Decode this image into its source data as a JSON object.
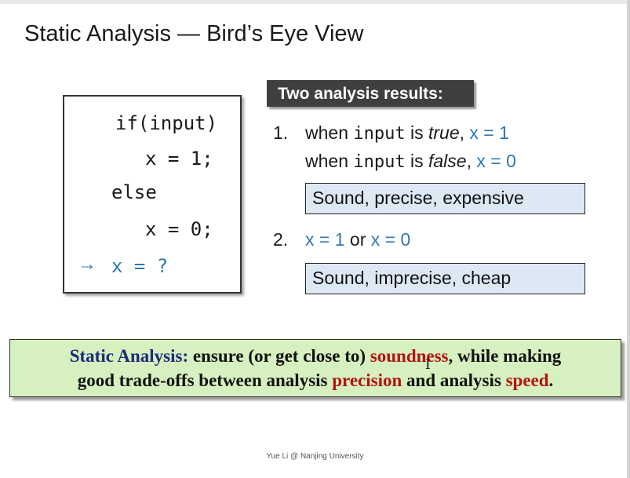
{
  "slide": {
    "title": "Static Analysis — Bird’s Eye View",
    "footer": "Yue Li @ Nanjing University"
  },
  "code": {
    "line1": "if(input)",
    "line2": "x = 1;",
    "line3": "else",
    "line4": "x = 0;",
    "arrow": "→",
    "question": "x = ?"
  },
  "results": {
    "header": "Two analysis results:",
    "item1": {
      "number": "1.",
      "line1": {
        "pre": "when ",
        "code": "input",
        "mid": " is ",
        "value": "true",
        "sep": ",  ",
        "result": "x = 1"
      },
      "line2": {
        "pre": "when ",
        "code": "input",
        "mid": " is ",
        "value": "false",
        "sep": ", ",
        "result": "x = 0"
      },
      "box": "Sound, precise, expensive"
    },
    "item2": {
      "number": "2.",
      "a": "x = 1",
      "or": " or ",
      "b": "x = 0",
      "box": "Sound, imprecise, cheap"
    }
  },
  "summary": {
    "label": "Static Analysis:",
    "t1": " ensure (or get close to) ",
    "soundness": "soundness",
    "t2": ", while making",
    "t3": "good trade-offs between analysis ",
    "precision": "precision",
    "t4": " and analysis ",
    "speed": "speed",
    "t5": "."
  },
  "colors": {
    "accent_blue": "#2e78b5",
    "callout_fill": "#dde8f5",
    "banner_fill": "#d6f0bf",
    "highlight_red": "#b51212",
    "label_navy": "#1f2a7a",
    "header_fill": "#3f3f3f"
  },
  "icons": {
    "cursor": "I-beam-text-cursor",
    "arrow": "right-arrow-icon"
  }
}
